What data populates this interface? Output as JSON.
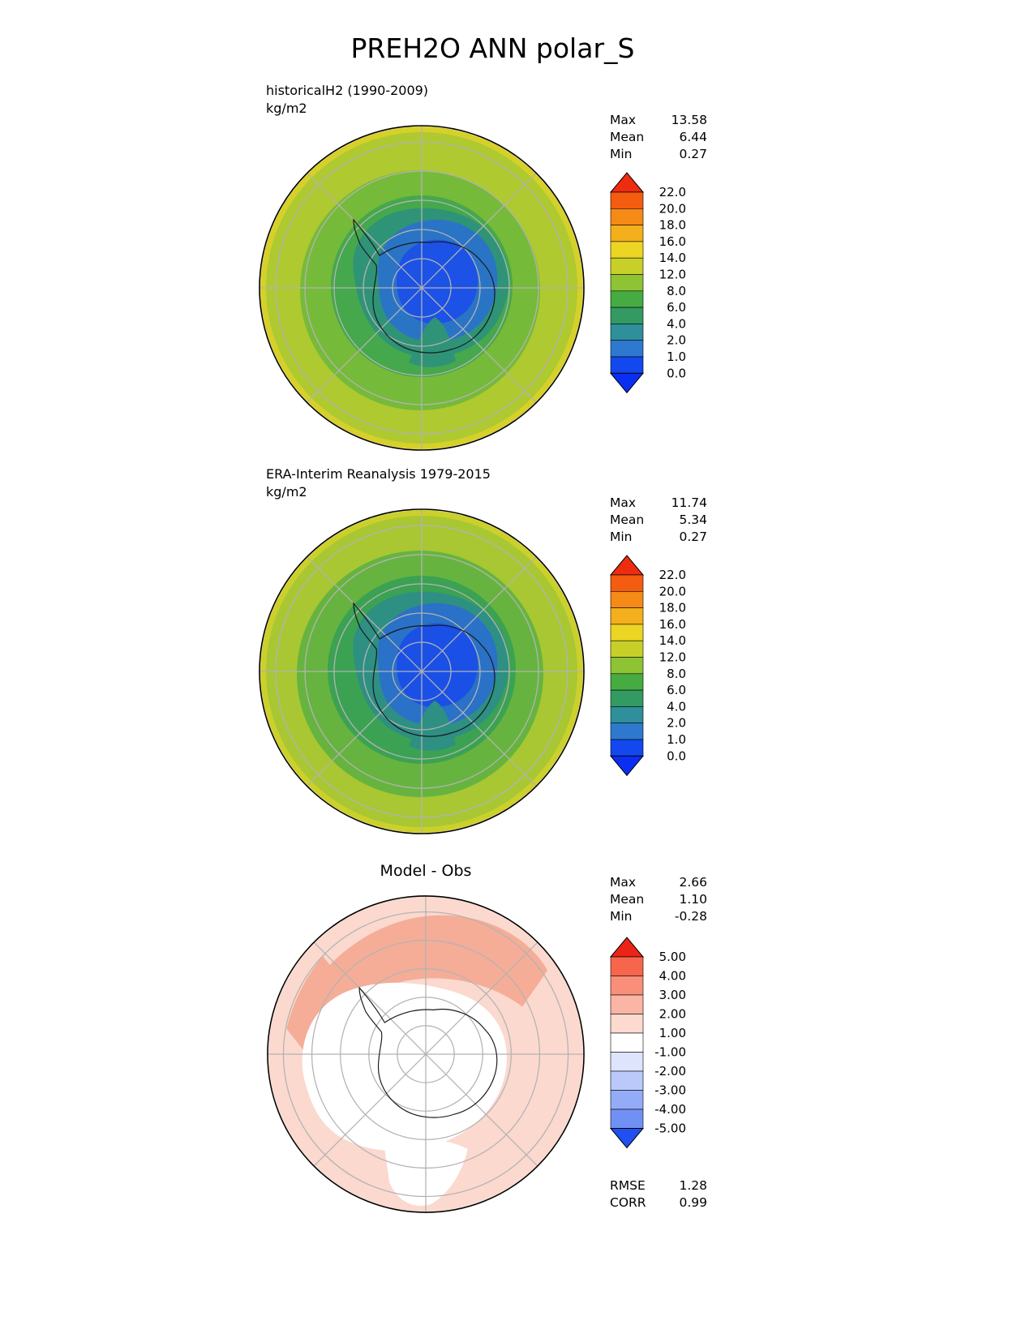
{
  "page": {
    "title": "PREH2O ANN polar_S",
    "background": "#ffffff"
  },
  "panels": [
    {
      "id": "model",
      "title": "historicalH2 (1990-2009)",
      "units": "kg/m2",
      "stats": [
        {
          "label": "Max",
          "value": "13.58"
        },
        {
          "label": "Mean",
          "value": "6.44"
        },
        {
          "label": "Min",
          "value": "0.27"
        }
      ],
      "colorbar": {
        "labels": [
          "22.0",
          "20.0",
          "18.0",
          "16.0",
          "14.0",
          "12.0",
          "8.0",
          "6.0",
          "4.0",
          "2.0",
          "1.0",
          "0.0"
        ],
        "top_arrow": "#ee2c10",
        "bottom_arrow": "#0a2ff2",
        "segments": [
          "#f45c10",
          "#f58a16",
          "#f3b01c",
          "#ecd523",
          "#c9cf29",
          "#8ec334",
          "#46ab41",
          "#339a62",
          "#2f8f9b",
          "#2e78cf",
          "#1248ee"
        ]
      },
      "map": {
        "rim": "#d6d02a",
        "outer": "#afc930",
        "band_6_8": "#76ba3a",
        "band_4_6": "#45a84c",
        "band_2_4": "#2f9377",
        "band_1_2": "#2a74c6",
        "band_0_1": "#1c52e6",
        "grid": "#b3b3b3",
        "coast": "#1a1a1a"
      }
    },
    {
      "id": "obs",
      "title": "ERA-Interim Reanalysis 1979-2015",
      "units": "kg/m2",
      "stats": [
        {
          "label": "Max",
          "value": "11.74"
        },
        {
          "label": "Mean",
          "value": "5.34"
        },
        {
          "label": "Min",
          "value": "0.27"
        }
      ],
      "colorbar": {
        "labels": [
          "22.0",
          "20.0",
          "18.0",
          "16.0",
          "14.0",
          "12.0",
          "8.0",
          "6.0",
          "4.0",
          "2.0",
          "1.0",
          "0.0"
        ],
        "top_arrow": "#ee2c10",
        "bottom_arrow": "#0a2ff2",
        "segments": [
          "#f45c10",
          "#f58a16",
          "#f3b01c",
          "#ecd523",
          "#c9cf29",
          "#8ec334",
          "#46ab41",
          "#339a62",
          "#2f8f9b",
          "#2e78cf",
          "#1248ee"
        ]
      },
      "map": {
        "rim": "#ccd02c",
        "outer": "#a8c733",
        "band_6_8": "#66b43f",
        "band_4_6": "#3ba253",
        "band_2_4": "#2e8f83",
        "band_1_2": "#2a71c8",
        "band_0_1": "#1a50e5",
        "grid": "#b3b3b3",
        "coast": "#1a1a1a"
      }
    },
    {
      "id": "diff",
      "title": "Model - Obs",
      "stats": [
        {
          "label": "Max",
          "value": "2.66"
        },
        {
          "label": "Mean",
          "value": "1.10"
        },
        {
          "label": "Min",
          "value": "-0.28"
        }
      ],
      "extra_stats": [
        {
          "label": "RMSE",
          "value": "1.28"
        },
        {
          "label": "CORR",
          "value": "0.99"
        }
      ],
      "colorbar": {
        "labels": [
          "5.00",
          "4.00",
          "3.00",
          "2.00",
          "1.00",
          "-1.00",
          "-2.00",
          "-3.00",
          "-4.00",
          "-5.00"
        ],
        "top_arrow": "#ea2417",
        "bottom_arrow": "#2050ef",
        "segments": [
          "#f7654c",
          "#f98f7a",
          "#fbb5a5",
          "#fdd9cf",
          "#ffffff",
          "#dde4fc",
          "#bac9fa",
          "#94abf7",
          "#7190f3"
        ]
      },
      "map": {
        "base": "#fbd9ce",
        "mid": "#f5ad97",
        "zero": "#ffffff",
        "grid": "#b3b3b3",
        "coast": "#1a1a1a"
      }
    }
  ],
  "chart_data": [
    {
      "type": "heatmap",
      "title": "historicalH2 (1990-2009)",
      "units": "kg/m2",
      "projection": "south polar stereographic",
      "stats": {
        "max": 13.58,
        "mean": 6.44,
        "min": 0.27
      },
      "contour_levels": [
        0.0,
        1.0,
        2.0,
        4.0,
        6.0,
        8.0,
        12.0,
        14.0,
        16.0,
        18.0,
        20.0,
        22.0
      ],
      "legend_position": "right",
      "description": "Annual-mean precipitable water; low values (<2 kg/m2, blue) over the Antarctic plateau east of the pole, increasing through teal and green bands to 8-14 kg/m2 (yellow-green) toward the 30S outer boundary."
    },
    {
      "type": "heatmap",
      "title": "ERA-Interim Reanalysis 1979-2015",
      "units": "kg/m2",
      "projection": "south polar stereographic",
      "stats": {
        "max": 11.74,
        "mean": 5.34,
        "min": 0.27
      },
      "contour_levels": [
        0.0,
        1.0,
        2.0,
        4.0,
        6.0,
        8.0,
        12.0,
        14.0,
        16.0,
        18.0,
        20.0,
        22.0
      ],
      "legend_position": "right",
      "description": "Same field from ERA-Interim reanalysis; similar pattern with slightly lower maximum and mean values."
    },
    {
      "type": "heatmap",
      "title": "Model - Obs",
      "units": "kg/m2",
      "projection": "south polar stereographic",
      "stats": {
        "max": 2.66,
        "mean": 1.1,
        "min": -0.28,
        "rmse": 1.28,
        "corr": 0.99
      },
      "contour_levels": [
        -5.0,
        -4.0,
        -3.0,
        -2.0,
        -1.0,
        1.0,
        2.0,
        3.0,
        4.0,
        5.0
      ],
      "legend_position": "right",
      "description": "Difference map: near zero (white) over Antarctica and the interior, +1 to +3 kg/m2 (pink to light red) over the surrounding ocean ring, strongest near the outer edge."
    }
  ]
}
